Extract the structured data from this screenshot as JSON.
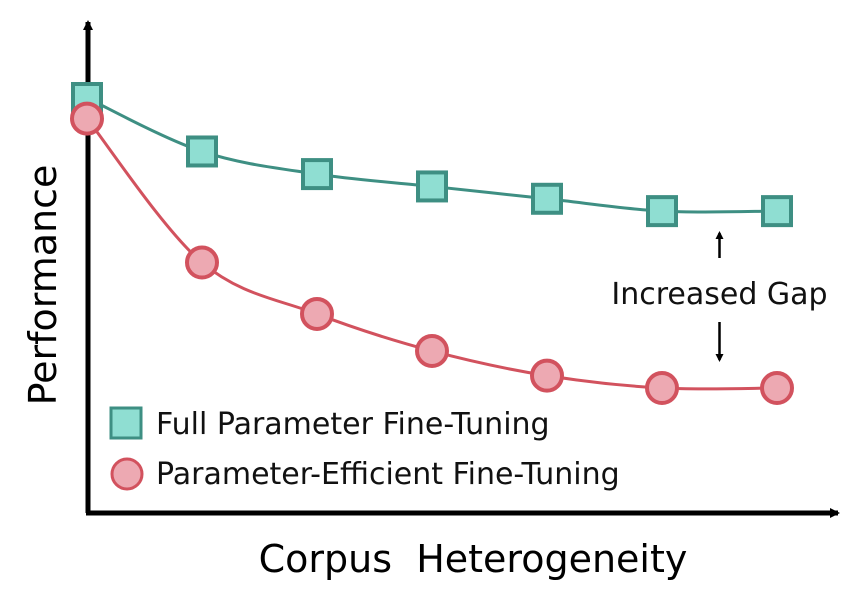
{
  "chart_data": {
    "type": "line",
    "xlabel": "Corpus  Heterogeneity",
    "ylabel": "Performance",
    "x": [
      0,
      1,
      2,
      3,
      4,
      5,
      6
    ],
    "xlim": [
      -0.02,
      6.3
    ],
    "ylim": [
      0,
      10
    ],
    "grid": false,
    "legend_position": "bottom-left",
    "series": [
      {
        "name": "Full Parameter Fine-Tuning",
        "marker": "square",
        "color": "#3e8f83",
        "fill": "#8fded2",
        "values": [
          10.0,
          8.7,
          8.15,
          7.85,
          7.55,
          7.25,
          7.25
        ]
      },
      {
        "name": "Parameter-Efficient Fine-Tuning",
        "marker": "circle",
        "color": "#d2525e",
        "fill": "#eda9b2",
        "values": [
          9.5,
          6.0,
          4.75,
          3.85,
          3.25,
          2.95,
          2.95
        ]
      }
    ],
    "annotations": [
      {
        "text": "Increased Gap",
        "x": 5.5
      }
    ]
  }
}
